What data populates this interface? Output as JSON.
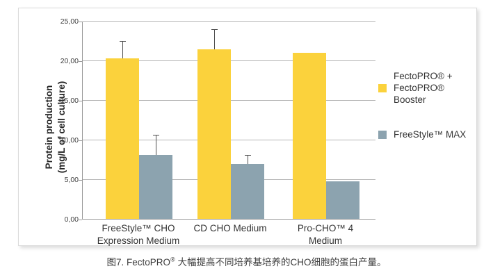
{
  "chart_data": {
    "type": "bar",
    "title": "",
    "ylabel": "Protein production (mg/L of cell culture)",
    "ylabel_lines": [
      "Protein production",
      "(mg/L of cell culture)"
    ],
    "ylim": [
      0,
      25
    ],
    "yticks": [
      0,
      5,
      10,
      15,
      20,
      25
    ],
    "ytick_labels": [
      "0,00",
      "5,00",
      "10,00",
      "15,00",
      "20,00",
      "25,00"
    ],
    "grid": true,
    "legend_position": "right",
    "categories": [
      "FreeStyle™ CHO Expression Medium",
      "CD CHO Medium",
      "Pro-CHO™ 4 Medium"
    ],
    "categories_lines": [
      [
        "FreeStyle™ CHO",
        "Expression Medium"
      ],
      [
        "CD CHO Medium"
      ],
      [
        "Pro-CHO™ 4",
        "Medium"
      ]
    ],
    "series": [
      {
        "name": "FectoPRO® + FectoPRO® Booster",
        "color": "#FBD23C",
        "values": [
          20.3,
          21.4,
          21.0
        ],
        "errors_plus": [
          2.1,
          2.5,
          0
        ]
      },
      {
        "name": "FreeStyle™ MAX",
        "color": "#8CA3AF",
        "values": [
          8.1,
          6.9,
          4.7
        ],
        "errors_plus": [
          2.4,
          1.1,
          0
        ]
      }
    ]
  },
  "legend": {
    "items": [
      {
        "label_lines": [
          "FectoPRO® +",
          "FectoPRO® Booster"
        ],
        "color": "#FBD23C"
      },
      {
        "label_lines": [
          "FreeStyle™ MAX"
        ],
        "color": "#8CA3AF"
      }
    ]
  },
  "caption": {
    "prefix": "图7. FectoPRO",
    "sup": "®",
    "suffix": " 大幅提高不同培养基培养的CHO细胞的蛋白产量。"
  },
  "colors": {
    "bar_yellow": "#FBD23C",
    "bar_gray_blue": "#8CA3AF",
    "gridline": "#B3B3B3",
    "axis": "#9A9A9A",
    "error_bar": "#4D4D4D",
    "text": "#3F3F3F",
    "panel_border": "#DBDBDB"
  }
}
